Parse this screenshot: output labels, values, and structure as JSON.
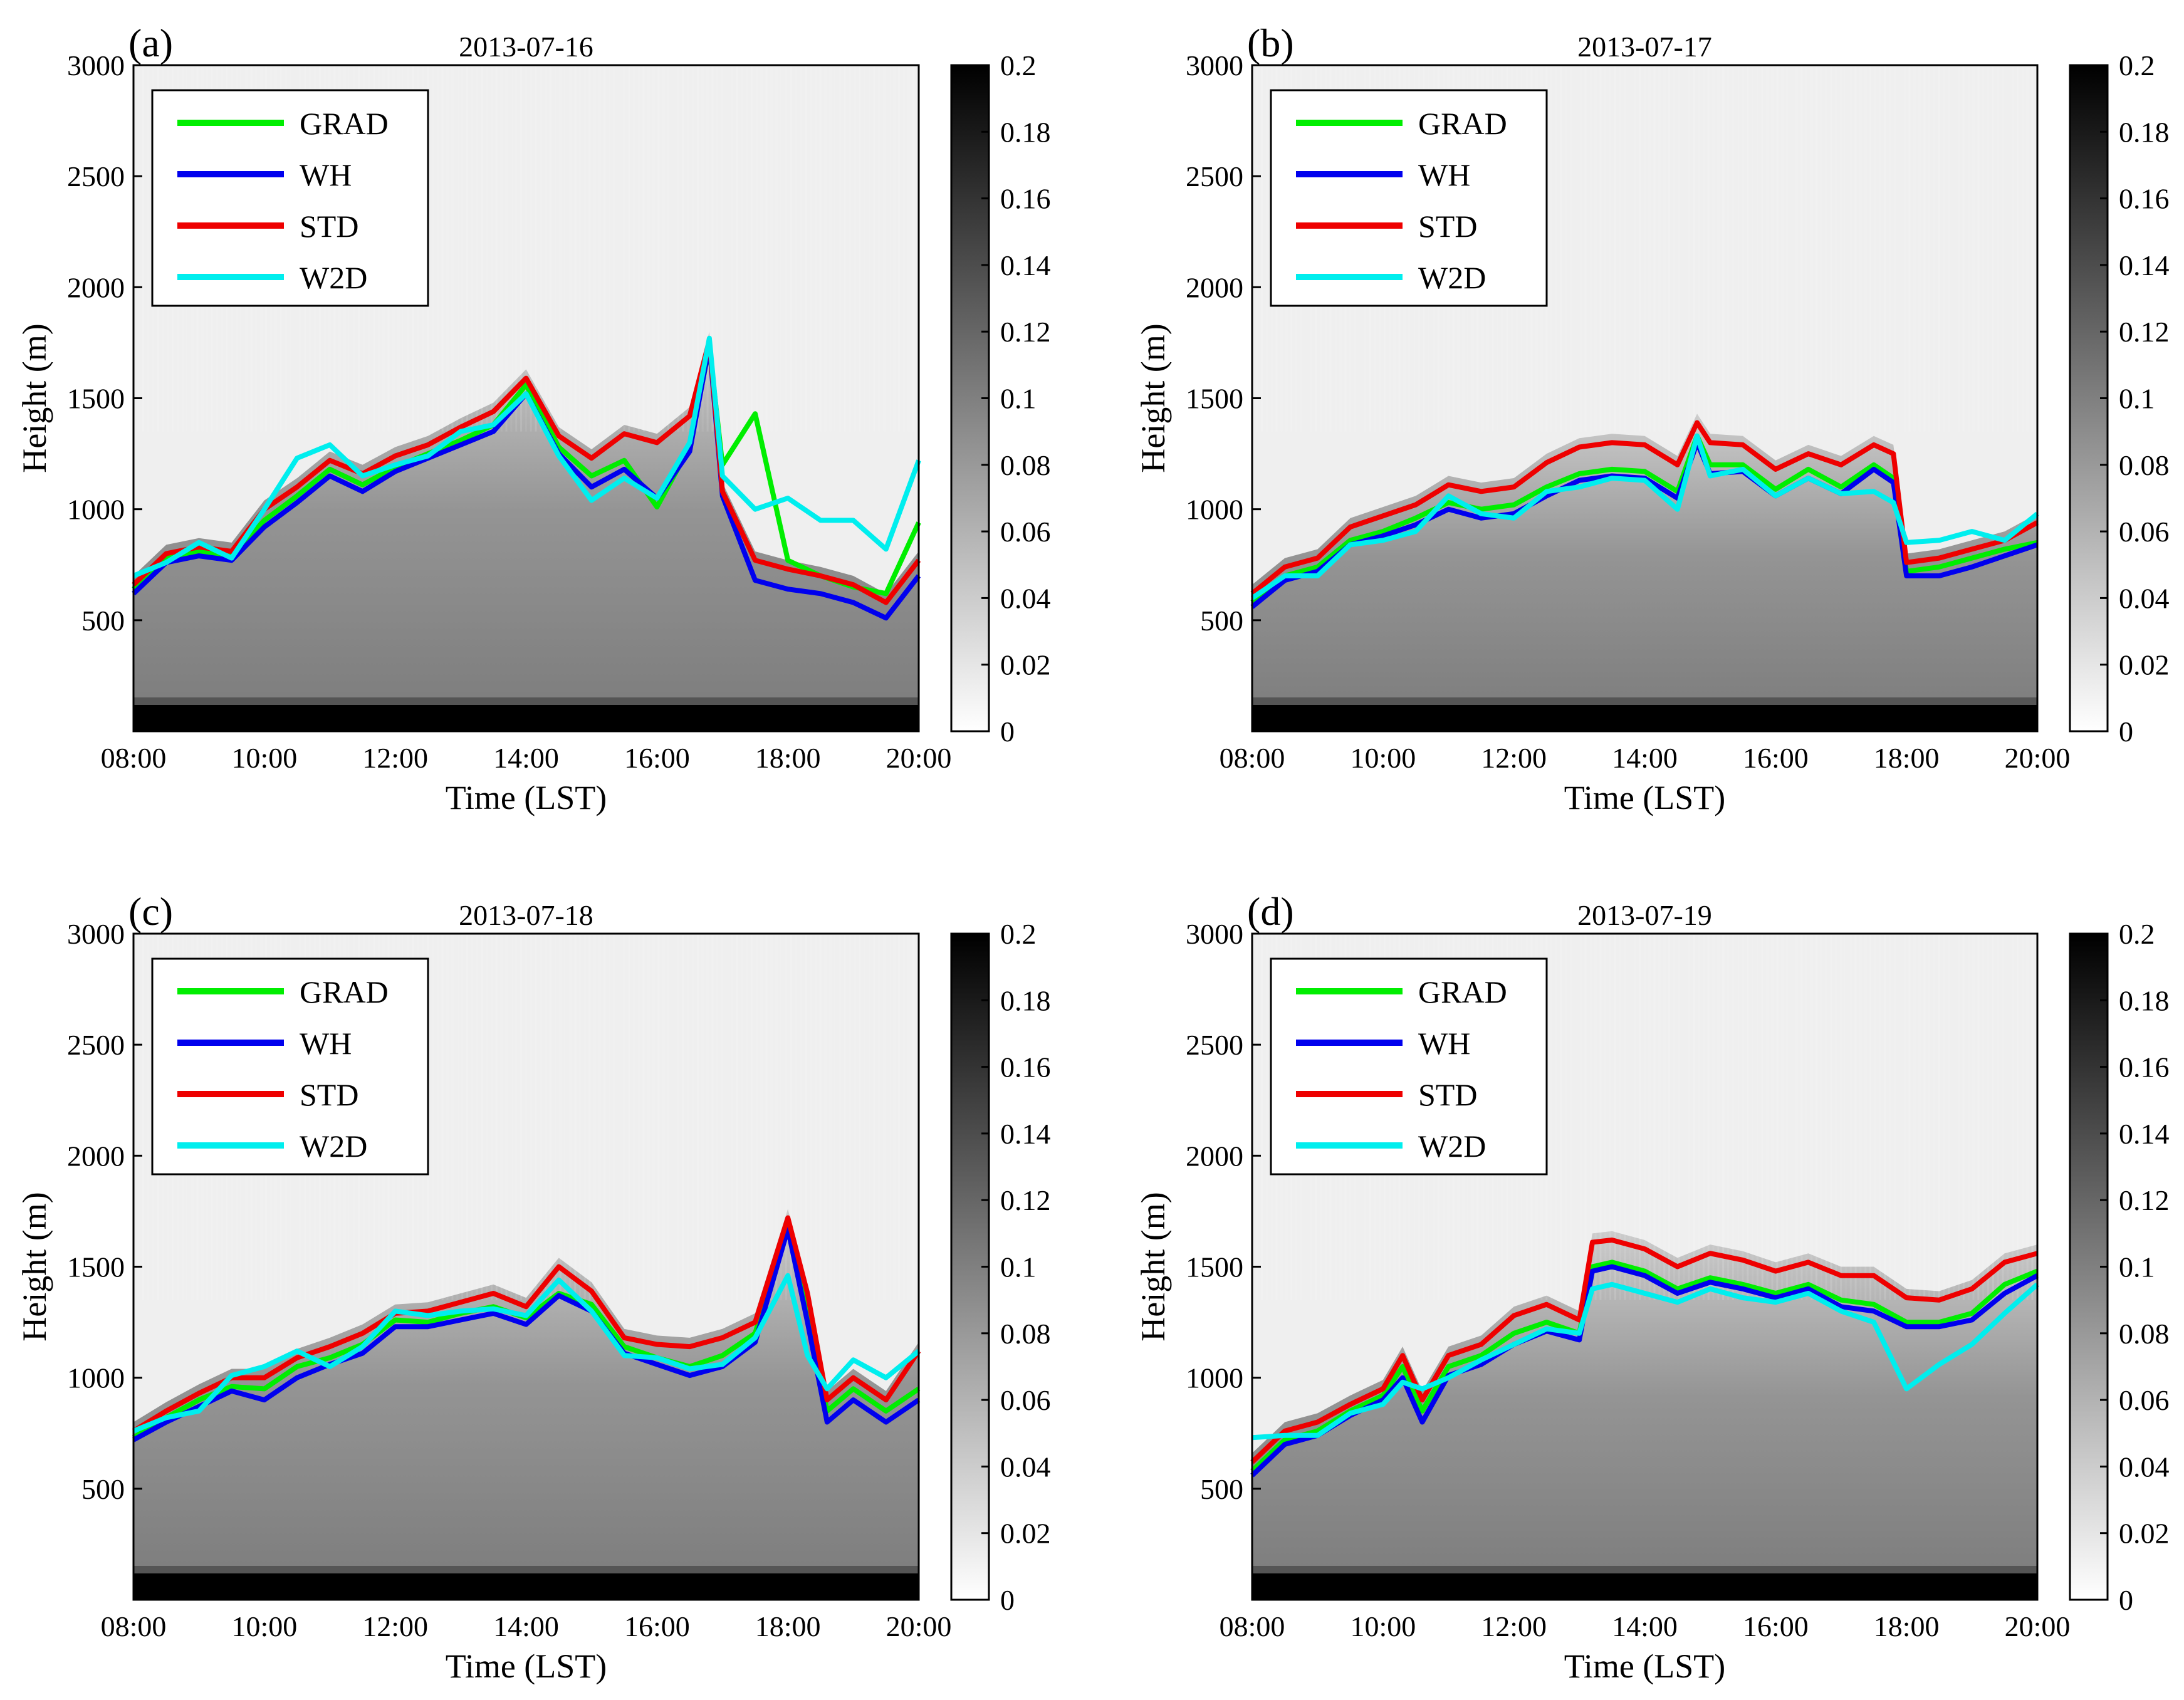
{
  "colors": {
    "GRAD": "#00ee00",
    "WH": "#0000ee",
    "STD": "#ee0000",
    "W2D": "#00eeee",
    "background_gray": "#f0f0f0"
  },
  "chart_data": [
    {
      "type": "line",
      "panel_label": "(a)",
      "title": "2013-07-16",
      "xlabel": "Time (LST)",
      "ylabel": "Height (m)",
      "x_ticks": [
        "08:00",
        "10:00",
        "12:00",
        "14:00",
        "16:00",
        "18:00",
        "20:00"
      ],
      "y_ticks": [
        "500",
        "1000",
        "1500",
        "2000",
        "2500",
        "3000"
      ],
      "xlim": [
        8,
        20
      ],
      "ylim": [
        0,
        3000
      ],
      "colorbar": {
        "ticks": [
          "0",
          "0.02",
          "0.04",
          "0.06",
          "0.08",
          "0.1",
          "0.12",
          "0.14",
          "0.16",
          "0.18",
          "0.2"
        ],
        "range": [
          0,
          0.2
        ]
      },
      "legend": [
        "GRAD",
        "WH",
        "STD",
        "W2D"
      ],
      "x": [
        8.0,
        8.5,
        9.0,
        9.5,
        10.0,
        10.5,
        11.0,
        11.5,
        12.0,
        12.5,
        13.0,
        13.5,
        14.0,
        14.5,
        15.0,
        15.5,
        16.0,
        16.5,
        16.8,
        17.0,
        17.5,
        18.0,
        18.5,
        19.0,
        19.5,
        20.0
      ],
      "series": [
        {
          "name": "GRAD",
          "values": [
            640,
            780,
            810,
            790,
            950,
            1060,
            1180,
            1110,
            1190,
            1250,
            1310,
            1380,
            1560,
            1280,
            1150,
            1220,
            1010,
            1280,
            1730,
            1200,
            1430,
            770,
            700,
            650,
            620,
            940
          ]
        },
        {
          "name": "WH",
          "values": [
            620,
            760,
            790,
            770,
            920,
            1030,
            1150,
            1080,
            1170,
            1230,
            1290,
            1350,
            1520,
            1250,
            1100,
            1180,
            1050,
            1260,
            1740,
            1060,
            680,
            640,
            620,
            580,
            510,
            700
          ]
        },
        {
          "name": "STD",
          "values": [
            660,
            800,
            830,
            810,
            1000,
            1100,
            1220,
            1160,
            1240,
            1290,
            1370,
            1440,
            1590,
            1330,
            1230,
            1340,
            1300,
            1420,
            1760,
            1080,
            770,
            730,
            700,
            660,
            580,
            770
          ]
        },
        {
          "name": "W2D",
          "values": [
            700,
            760,
            850,
            780,
            1000,
            1230,
            1290,
            1150,
            1200,
            1240,
            1350,
            1380,
            1520,
            1240,
            1040,
            1140,
            1050,
            1300,
            1770,
            1150,
            1000,
            1050,
            950,
            950,
            820,
            1220
          ]
        }
      ]
    },
    {
      "type": "line",
      "panel_label": "(b)",
      "title": "2013-07-17",
      "xlabel": "Time (LST)",
      "ylabel": "Height (m)",
      "x_ticks": [
        "08:00",
        "10:00",
        "12:00",
        "14:00",
        "16:00",
        "18:00",
        "20:00"
      ],
      "y_ticks": [
        "500",
        "1000",
        "1500",
        "2000",
        "2500",
        "3000"
      ],
      "xlim": [
        8,
        20
      ],
      "ylim": [
        0,
        3000
      ],
      "colorbar": {
        "ticks": [
          "0",
          "0.02",
          "0.04",
          "0.06",
          "0.08",
          "0.1",
          "0.12",
          "0.14",
          "0.16",
          "0.18",
          "0.2"
        ],
        "range": [
          0,
          0.2
        ]
      },
      "legend": [
        "GRAD",
        "WH",
        "STD",
        "W2D"
      ],
      "x": [
        8.0,
        8.5,
        9.0,
        9.5,
        10.0,
        10.5,
        11.0,
        11.5,
        12.0,
        12.5,
        13.0,
        13.5,
        14.0,
        14.5,
        14.8,
        15.0,
        15.5,
        16.0,
        16.5,
        17.0,
        17.5,
        17.8,
        18.0,
        18.5,
        19.0,
        19.5,
        20.0
      ],
      "series": [
        {
          "name": "GRAD",
          "values": [
            580,
            700,
            740,
            860,
            900,
            960,
            1030,
            1000,
            1020,
            1100,
            1160,
            1180,
            1170,
            1080,
            1330,
            1200,
            1200,
            1090,
            1180,
            1100,
            1200,
            1140,
            720,
            740,
            780,
            820,
            850
          ]
        },
        {
          "name": "WH",
          "values": [
            560,
            680,
            720,
            840,
            880,
            930,
            1000,
            960,
            980,
            1060,
            1130,
            1150,
            1140,
            1050,
            1300,
            1160,
            1170,
            1060,
            1140,
            1070,
            1180,
            1120,
            700,
            700,
            740,
            790,
            840
          ]
        },
        {
          "name": "STD",
          "values": [
            620,
            740,
            780,
            920,
            970,
            1020,
            1110,
            1080,
            1100,
            1210,
            1280,
            1300,
            1290,
            1200,
            1390,
            1300,
            1290,
            1180,
            1250,
            1200,
            1290,
            1250,
            760,
            780,
            820,
            860,
            940
          ]
        },
        {
          "name": "W2D",
          "values": [
            600,
            700,
            700,
            840,
            860,
            900,
            1060,
            980,
            960,
            1080,
            1100,
            1140,
            1130,
            1000,
            1330,
            1150,
            1180,
            1060,
            1140,
            1070,
            1080,
            1030,
            850,
            860,
            900,
            860,
            980
          ]
        }
      ]
    },
    {
      "type": "line",
      "panel_label": "(c)",
      "title": "2013-07-18",
      "xlabel": "Time (LST)",
      "ylabel": "Height (m)",
      "x_ticks": [
        "08:00",
        "10:00",
        "12:00",
        "14:00",
        "16:00",
        "18:00",
        "20:00"
      ],
      "y_ticks": [
        "500",
        "1000",
        "1500",
        "2000",
        "2500",
        "3000"
      ],
      "xlim": [
        8,
        20
      ],
      "ylim": [
        0,
        3000
      ],
      "colorbar": {
        "ticks": [
          "0",
          "0.02",
          "0.04",
          "0.06",
          "0.08",
          "0.1",
          "0.12",
          "0.14",
          "0.16",
          "0.18",
          "0.2"
        ],
        "range": [
          0,
          0.2
        ]
      },
      "legend": [
        "GRAD",
        "WH",
        "STD",
        "W2D"
      ],
      "x": [
        8.0,
        8.5,
        9.0,
        9.5,
        10.0,
        10.5,
        11.0,
        11.5,
        12.0,
        12.5,
        13.0,
        13.5,
        14.0,
        14.5,
        15.0,
        15.5,
        16.0,
        16.5,
        17.0,
        17.5,
        18.0,
        18.3,
        18.6,
        19.0,
        19.5,
        20.0
      ],
      "series": [
        {
          "name": "GRAD",
          "values": [
            730,
            820,
            900,
            960,
            950,
            1050,
            1090,
            1150,
            1260,
            1250,
            1290,
            1320,
            1270,
            1380,
            1330,
            1140,
            1090,
            1050,
            1100,
            1200,
            1690,
            1300,
            850,
            950,
            850,
            950
          ]
        },
        {
          "name": "WH",
          "values": [
            720,
            800,
            870,
            940,
            900,
            1000,
            1060,
            1110,
            1230,
            1230,
            1260,
            1290,
            1240,
            1370,
            1300,
            1110,
            1060,
            1010,
            1050,
            1160,
            1670,
            1250,
            800,
            900,
            800,
            900
          ]
        },
        {
          "name": "STD",
          "values": [
            760,
            850,
            930,
            1000,
            1000,
            1090,
            1140,
            1200,
            1290,
            1300,
            1340,
            1380,
            1320,
            1500,
            1390,
            1180,
            1150,
            1140,
            1180,
            1250,
            1720,
            1380,
            900,
            1000,
            900,
            1120
          ]
        },
        {
          "name": "W2D",
          "values": [
            760,
            820,
            850,
            1010,
            1050,
            1120,
            1050,
            1140,
            1300,
            1280,
            1300,
            1310,
            1280,
            1440,
            1300,
            1100,
            1090,
            1040,
            1060,
            1180,
            1460,
            1100,
            950,
            1080,
            1000,
            1120
          ]
        }
      ]
    },
    {
      "type": "line",
      "panel_label": "(d)",
      "title": "2013-07-19",
      "xlabel": "Time (LST)",
      "ylabel": "Height (m)",
      "x_ticks": [
        "08:00",
        "10:00",
        "12:00",
        "14:00",
        "16:00",
        "18:00",
        "20:00"
      ],
      "y_ticks": [
        "500",
        "1000",
        "1500",
        "2000",
        "2500",
        "3000"
      ],
      "xlim": [
        8,
        20
      ],
      "ylim": [
        0,
        3000
      ],
      "colorbar": {
        "ticks": [
          "0",
          "0.02",
          "0.04",
          "0.06",
          "0.08",
          "0.1",
          "0.12",
          "0.14",
          "0.16",
          "0.18",
          "0.2"
        ],
        "range": [
          0,
          0.2
        ]
      },
      "legend": [
        "GRAD",
        "WH",
        "STD",
        "W2D"
      ],
      "x": [
        8.0,
        8.5,
        9.0,
        9.5,
        10.0,
        10.3,
        10.6,
        11.0,
        11.5,
        12.0,
        12.5,
        13.0,
        13.2,
        13.5,
        14.0,
        14.5,
        15.0,
        15.5,
        16.0,
        16.5,
        17.0,
        17.5,
        18.0,
        18.5,
        19.0,
        19.5,
        20.0
      ],
      "series": [
        {
          "name": "GRAD",
          "values": [
            580,
            720,
            760,
            850,
            920,
            1050,
            850,
            1050,
            1100,
            1200,
            1250,
            1200,
            1500,
            1520,
            1480,
            1400,
            1450,
            1420,
            1380,
            1420,
            1350,
            1330,
            1250,
            1250,
            1290,
            1420,
            1480
          ]
        },
        {
          "name": "WH",
          "values": [
            560,
            700,
            740,
            830,
            900,
            1000,
            800,
            1010,
            1060,
            1150,
            1210,
            1170,
            1480,
            1500,
            1460,
            1380,
            1430,
            1400,
            1360,
            1400,
            1320,
            1300,
            1230,
            1230,
            1260,
            1380,
            1460
          ]
        },
        {
          "name": "STD",
          "values": [
            620,
            760,
            800,
            880,
            950,
            1100,
            900,
            1100,
            1150,
            1280,
            1330,
            1260,
            1610,
            1620,
            1580,
            1500,
            1560,
            1530,
            1480,
            1520,
            1460,
            1460,
            1360,
            1350,
            1400,
            1520,
            1560
          ]
        },
        {
          "name": "W2D",
          "values": [
            730,
            740,
            740,
            840,
            880,
            980,
            950,
            1000,
            1080,
            1150,
            1220,
            1200,
            1400,
            1420,
            1380,
            1340,
            1400,
            1360,
            1340,
            1380,
            1300,
            1250,
            950,
            1060,
            1150,
            1290,
            1420
          ]
        }
      ]
    }
  ]
}
